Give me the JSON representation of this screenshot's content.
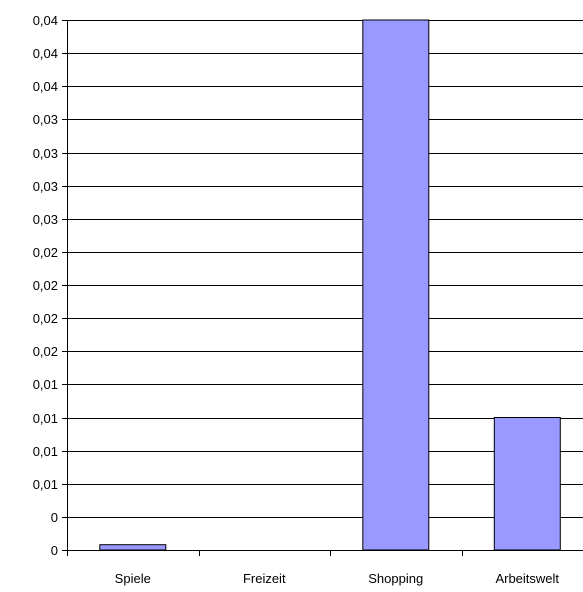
{
  "chart_data": {
    "type": "bar",
    "categories": [
      "Spiele",
      "Freizeit",
      "Shopping",
      "Arbeitswelt"
    ],
    "values": [
      0.0004,
      0.0,
      0.04,
      0.01
    ],
    "ylim": [
      0,
      0.04
    ],
    "y_tick_labels": [
      "0",
      "0",
      "0,01",
      "0,01",
      "0,01",
      "0,01",
      "0,02",
      "0,02",
      "0,02",
      "0,02",
      "0,03",
      "0,03",
      "0,03",
      "0,03",
      "0,04",
      "0,04",
      "0,04"
    ],
    "grid": true,
    "legend": "none",
    "bar_color": "#9999ff",
    "bar_edge_color": "#000000",
    "grid_color": "#000000"
  }
}
